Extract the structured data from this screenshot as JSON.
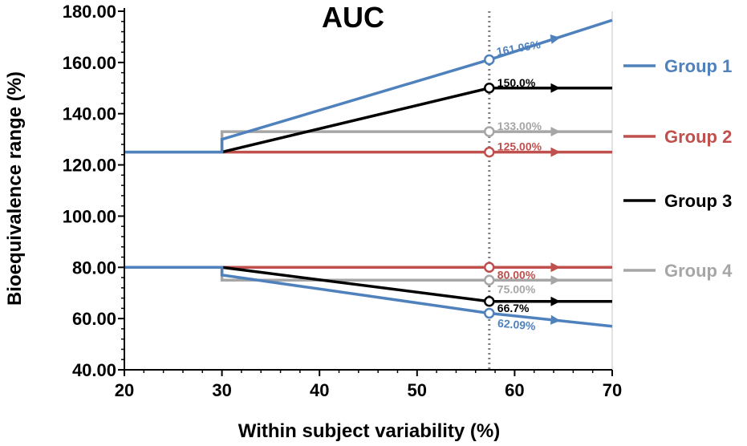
{
  "chart_data": {
    "type": "line",
    "title": "AUC",
    "xlabel": "Within subject variability (%)",
    "ylabel": "Bioequivalence range (%)",
    "xlim": [
      20,
      70
    ],
    "ylim": [
      40,
      180
    ],
    "x_ticks": [
      20,
      30,
      40,
      50,
      60,
      70
    ],
    "x_tick_labels": [
      "20",
      "30",
      "40",
      "50",
      "60",
      "70"
    ],
    "y_ticks": [
      40,
      60,
      80,
      100,
      120,
      140,
      160,
      180
    ],
    "y_tick_labels": [
      "40.00",
      "60.00",
      "80.00",
      "100.00",
      "120.00",
      "140.00",
      "160.00",
      "180.00"
    ],
    "reference_line_x": 57.4,
    "legend_position": "right",
    "series": [
      {
        "name": "Group 1",
        "color": "#4f81bd",
        "upper": {
          "x": [
            20,
            30,
            30,
            57.4,
            70
          ],
          "y": [
            125,
            125,
            130,
            161.06,
            176.5
          ]
        },
        "lower": {
          "x": [
            20,
            30,
            30,
            57.4,
            70
          ],
          "y": [
            80,
            80,
            77,
            62.09,
            57
          ]
        }
      },
      {
        "name": "Group 2",
        "color": "#c0504d",
        "upper": {
          "x": [
            30,
            70
          ],
          "y": [
            125,
            125
          ]
        },
        "lower": {
          "x": [
            30,
            70
          ],
          "y": [
            80,
            80
          ]
        }
      },
      {
        "name": "Group 3",
        "color": "#000000",
        "upper": {
          "x": [
            30,
            57.4,
            70
          ],
          "y": [
            125,
            150,
            150
          ]
        },
        "lower": {
          "x": [
            30,
            57.4,
            70
          ],
          "y": [
            80,
            66.7,
            66.7
          ]
        }
      },
      {
        "name": "Group 4",
        "color": "#a6a6a6",
        "upper": {
          "x": [
            20,
            30,
            30,
            70
          ],
          "y": [
            125,
            125,
            133,
            133
          ]
        },
        "lower": {
          "x": [
            20,
            30,
            30,
            70
          ],
          "y": [
            80,
            80,
            75,
            75
          ]
        }
      }
    ],
    "annotations": [
      {
        "text": "161.06%",
        "x": 57.4,
        "y": 161.06,
        "color": "#4f81bd",
        "rotate": -10
      },
      {
        "text": "150.0%",
        "x": 57.4,
        "y": 150.0,
        "color": "#000000",
        "rotate": 0
      },
      {
        "text": "133.00%",
        "x": 57.4,
        "y": 133.0,
        "color": "#a6a6a6",
        "rotate": 0
      },
      {
        "text": "125.00%",
        "x": 57.4,
        "y": 125.0,
        "color": "#c0504d",
        "rotate": 0
      },
      {
        "text": "80.00%",
        "x": 57.4,
        "y": 80.0,
        "color": "#c0504d",
        "rotate": 0
      },
      {
        "text": "75.00%",
        "x": 57.4,
        "y": 75.0,
        "color": "#a6a6a6",
        "rotate": 0
      },
      {
        "text": "66.7%",
        "x": 57.4,
        "y": 66.7,
        "color": "#000000",
        "rotate": 0
      },
      {
        "text": "62.09%",
        "x": 57.4,
        "y": 62.09,
        "color": "#4f81bd",
        "rotate": 5
      }
    ]
  }
}
